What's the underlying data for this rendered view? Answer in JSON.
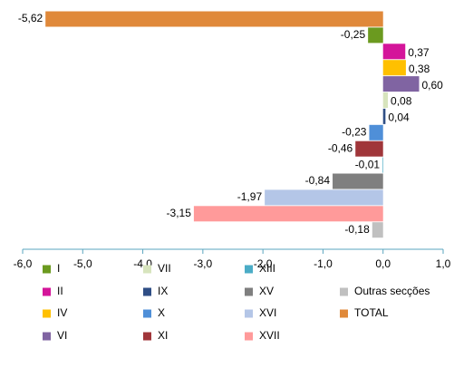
{
  "chart_data": {
    "type": "bar",
    "orientation": "horizontal",
    "categories": [
      "TOTAL",
      "I",
      "II",
      "IV",
      "VI",
      "VII",
      "IX",
      "X",
      "XI",
      "XIII",
      "XV",
      "XVI",
      "XVII",
      "Outras secções"
    ],
    "values": [
      -5.62,
      -0.25,
      0.37,
      0.38,
      0.6,
      0.08,
      0.04,
      -0.23,
      -0.46,
      -0.01,
      -0.84,
      -1.97,
      -3.15,
      -0.18
    ],
    "value_labels": [
      "-5,62",
      "-0,25",
      "0,37",
      "0,38",
      "0,60",
      "0,08",
      "0,04",
      "-0,23",
      "-0,46",
      "-0,01",
      "-0,84",
      "-1,97",
      "-3,15",
      "-0,18"
    ],
    "colors": [
      "#e0893a",
      "#6b9a1f",
      "#d4159a",
      "#ffc000",
      "#8064a2",
      "#d7e4bd",
      "#2f4e85",
      "#4f8fd8",
      "#a0363a",
      "#4bacc6",
      "#7f7f7f",
      "#b4c6e7",
      "#ff9a9a",
      "#c0c0c0"
    ],
    "xlim": [
      -6,
      1
    ],
    "xticks": [
      {
        "value": -6,
        "label": "-6,0"
      },
      {
        "value": -5,
        "label": "-5,0"
      },
      {
        "value": -4,
        "label": "-4,0"
      },
      {
        "value": -3,
        "label": "-3,0"
      },
      {
        "value": -2,
        "label": "-2,0"
      },
      {
        "value": -1,
        "label": "-1,0"
      },
      {
        "value": 0,
        "label": "0,0"
      },
      {
        "value": 1,
        "label": "1,0"
      }
    ],
    "grid": false
  }
}
